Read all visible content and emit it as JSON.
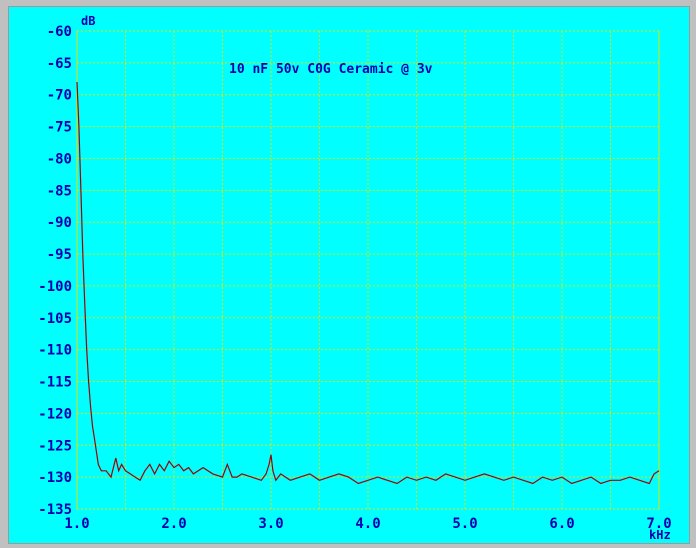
{
  "chart_data": {
    "type": "line",
    "title": "10 nF 50v C0G Ceramic @ 3v",
    "x_unit": "kHz",
    "y_unit": "dB",
    "xlim": [
      1.0,
      7.0
    ],
    "ylim": [
      -135,
      -60
    ],
    "x_ticks": [
      "1.0",
      "2.0",
      "3.0",
      "4.0",
      "5.0",
      "6.0",
      "7.0"
    ],
    "y_ticks": [
      "-60",
      "-65",
      "-70",
      "-75",
      "-80",
      "-85",
      "-90",
      "-95",
      "-100",
      "-105",
      "-110",
      "-115",
      "-120",
      "-125",
      "-130",
      "-135"
    ],
    "grid": true,
    "colors": {
      "background": "#00ffff",
      "grid": "#e0e000",
      "line": "#a00000",
      "text": "#0000b0"
    },
    "series": [
      {
        "x": [
          1.0,
          1.02,
          1.04,
          1.06,
          1.08,
          1.1,
          1.12,
          1.14,
          1.16,
          1.18,
          1.2,
          1.22,
          1.25,
          1.3,
          1.35,
          1.4,
          1.43,
          1.46,
          1.5,
          1.55,
          1.6,
          1.65,
          1.7,
          1.75,
          1.8,
          1.85,
          1.9,
          1.95,
          2.0,
          2.05,
          2.1,
          2.15,
          2.2,
          2.3,
          2.4,
          2.5,
          2.55,
          2.6,
          2.65,
          2.7,
          2.8,
          2.9,
          2.95,
          2.98,
          3.0,
          3.02,
          3.05,
          3.1,
          3.2,
          3.3,
          3.4,
          3.5,
          3.6,
          3.7,
          3.8,
          3.9,
          4.0,
          4.1,
          4.2,
          4.3,
          4.4,
          4.5,
          4.6,
          4.7,
          4.8,
          4.9,
          5.0,
          5.1,
          5.2,
          5.3,
          5.4,
          5.5,
          5.6,
          5.7,
          5.8,
          5.9,
          6.0,
          6.1,
          6.2,
          6.3,
          6.4,
          6.5,
          6.6,
          6.7,
          6.8,
          6.9,
          6.95,
          7.0
        ],
        "y": [
          -68,
          -75,
          -85,
          -95,
          -103,
          -110,
          -115,
          -119,
          -122,
          -124,
          -126,
          -128,
          -129,
          -129,
          -130,
          -127,
          -129,
          -128,
          -129,
          -129.5,
          -130,
          -130.5,
          -129,
          -128,
          -129.5,
          -128,
          -129,
          -127.5,
          -128.5,
          -128,
          -129,
          -128.5,
          -129.5,
          -128.5,
          -129.5,
          -130,
          -128,
          -130,
          -130,
          -129.5,
          -130,
          -130.5,
          -129.5,
          -128,
          -126.5,
          -129,
          -130.5,
          -129.5,
          -130.5,
          -130,
          -129.5,
          -130.5,
          -130,
          -129.5,
          -130,
          -131,
          -130.5,
          -130,
          -130.5,
          -131,
          -130,
          -130.5,
          -130,
          -130.5,
          -129.5,
          -130,
          -130.5,
          -130,
          -129.5,
          -130,
          -130.5,
          -130,
          -130.5,
          -131,
          -130,
          -130.5,
          -130,
          -131,
          -130.5,
          -130,
          -131,
          -130.5,
          -130.5,
          -130,
          -130.5,
          -131,
          -129.5,
          -129
        ]
      }
    ]
  }
}
